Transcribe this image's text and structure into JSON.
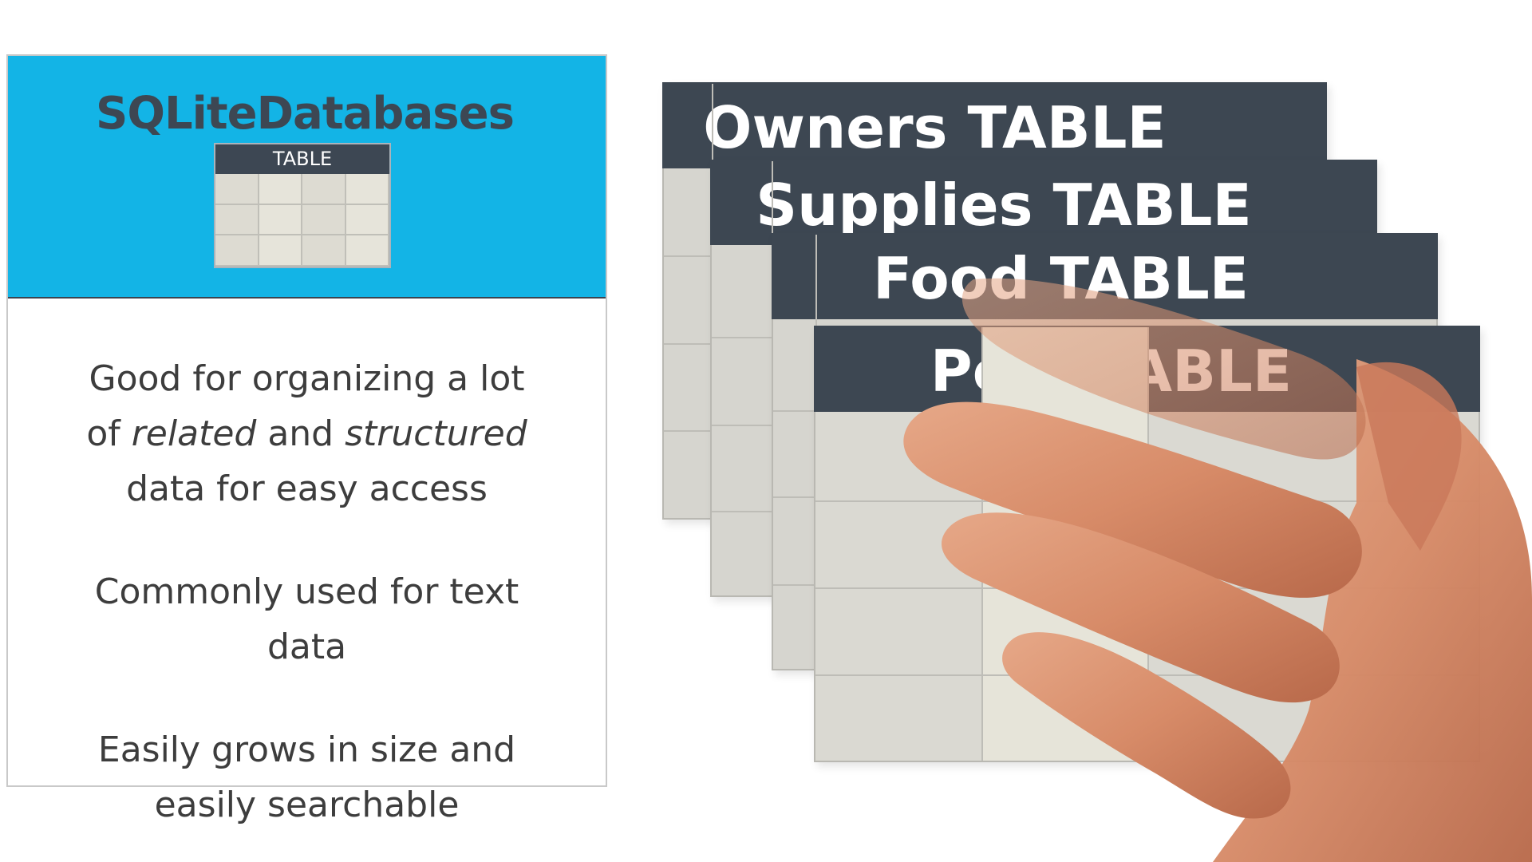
{
  "card": {
    "title": "SQLiteDatabases",
    "mini_table_label": "TABLE",
    "point1": {
      "line1": "Good for organizing a lot",
      "line2_pre": "of ",
      "line2_em1": "related",
      "line2_mid": " and ",
      "line2_em2": "structured",
      "line3": "data for easy access"
    },
    "point2": {
      "line1": "Commonly used for text",
      "line2": "data"
    },
    "point3": {
      "line1": "Easily grows in size and",
      "line2": "easily searchable"
    }
  },
  "tables": {
    "owners": "Owners TABLE",
    "supplies": "Supplies TABLE",
    "food": "Food TABLE",
    "pets": "Pets TABLE"
  },
  "colors": {
    "header_blue": "#13b4e6",
    "bar_dark": "#3d4752",
    "cell_gray": "#d6d5cf"
  },
  "icons": {
    "hand": "hand-pointer-image"
  }
}
